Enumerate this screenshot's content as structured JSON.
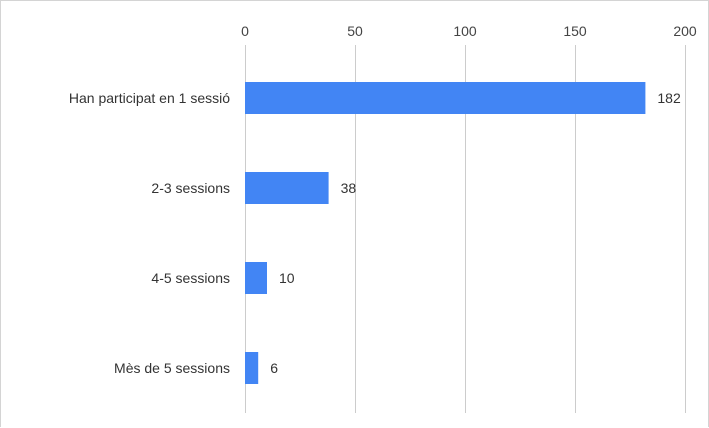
{
  "chart_data": {
    "type": "bar",
    "orientation": "horizontal",
    "categories": [
      "Han participat en 1 sessió",
      "2-3 sessions",
      "4-5 sessions",
      "Mès de 5 sessions"
    ],
    "values": [
      182,
      38,
      10,
      6
    ],
    "xlim": [
      0,
      200
    ],
    "xticks": [
      0,
      50,
      100,
      150,
      200
    ],
    "x_axis_position": "top",
    "grid": true,
    "data_labels": true,
    "bar_color": "#4285f4",
    "title": "",
    "xlabel": "",
    "ylabel": ""
  }
}
